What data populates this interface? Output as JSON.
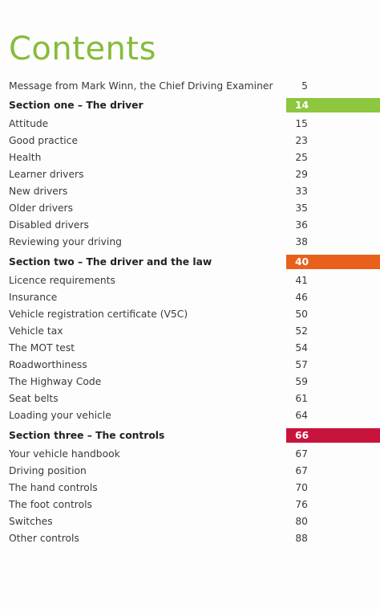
{
  "title": "Contents",
  "intro": {
    "text": "Message from Mark Winn, the Chief Driving Examiner",
    "page": 5
  },
  "sections": [
    {
      "title": "Section one – The driver",
      "page": 14,
      "color": "#8dc63f",
      "items": [
        {
          "text": "Attitude",
          "page": 15
        },
        {
          "text": "Good practice",
          "page": 23
        },
        {
          "text": "Health",
          "page": 25
        },
        {
          "text": "Learner drivers",
          "page": 29
        },
        {
          "text": "New drivers",
          "page": 33
        },
        {
          "text": "Older drivers",
          "page": 35
        },
        {
          "text": "Disabled drivers",
          "page": 36
        },
        {
          "text": "Reviewing your driving",
          "page": 38
        }
      ]
    },
    {
      "title": "Section two – The driver and the law",
      "page": 40,
      "color": "#e8601c",
      "items": [
        {
          "text": "Licence requirements",
          "page": 41
        },
        {
          "text": "Insurance",
          "page": 46
        },
        {
          "text": "Vehicle registration certificate (V5C)",
          "page": 50
        },
        {
          "text": "Vehicle tax",
          "page": 52
        },
        {
          "text": "The MOT test",
          "page": 54
        },
        {
          "text": "Roadworthiness",
          "page": 57
        },
        {
          "text": "The Highway Code",
          "page": 59
        },
        {
          "text": "Seat belts",
          "page": 61
        },
        {
          "text": "Loading your vehicle",
          "page": 64
        }
      ]
    },
    {
      "title": "Section three – The controls",
      "page": 66,
      "color": "#c8143c",
      "items": [
        {
          "text": "Your vehicle handbook",
          "page": 67
        },
        {
          "text": "Driving position",
          "page": 67
        },
        {
          "text": "The hand controls",
          "page": 70
        },
        {
          "text": "The foot controls",
          "page": 76
        },
        {
          "text": "Switches",
          "page": 80
        },
        {
          "text": "Other controls",
          "page": 88
        }
      ]
    }
  ]
}
